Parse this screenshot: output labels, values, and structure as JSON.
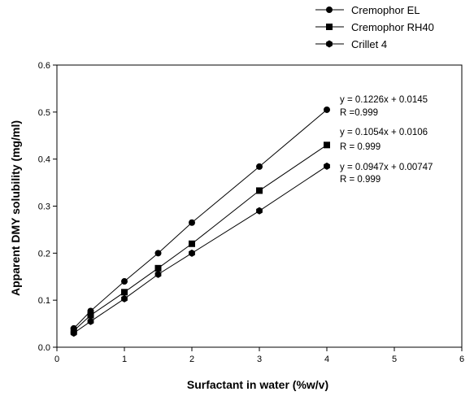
{
  "chart_data": {
    "type": "line",
    "xlabel": "Surfactant in water (%w/v)",
    "ylabel": "Apparent DMY solubility (mg/ml)",
    "xlim": [
      0,
      6
    ],
    "ylim": [
      0,
      0.6
    ],
    "xticks": [
      0,
      1,
      2,
      3,
      4,
      5,
      6
    ],
    "yticks": [
      0.0,
      0.1,
      0.2,
      0.3,
      0.4,
      0.5,
      0.6
    ],
    "xtick_labels": [
      "0",
      "1",
      "2",
      "3",
      "4",
      "5",
      "6"
    ],
    "ytick_labels": [
      "0.0",
      "0.1",
      "0.2",
      "0.3",
      "0.4",
      "0.5",
      "0.6"
    ],
    "grid": false,
    "legend_position": "top-right, outside plot",
    "series": [
      {
        "name": "Cremophor EL",
        "marker": "circle",
        "x": [
          0.25,
          0.5,
          1,
          1.5,
          2,
          3,
          4
        ],
        "y": [
          0.04,
          0.077,
          0.14,
          0.2,
          0.265,
          0.384,
          0.505
        ]
      },
      {
        "name": "Cremophor RH40",
        "marker": "square",
        "x": [
          0.25,
          0.5,
          1,
          1.5,
          2,
          3,
          4
        ],
        "y": [
          0.035,
          0.068,
          0.117,
          0.168,
          0.22,
          0.333,
          0.43
        ]
      },
      {
        "name": "Crillet 4",
        "marker": "hexagon",
        "x": [
          0.25,
          0.5,
          1,
          1.5,
          2,
          3,
          4
        ],
        "y": [
          0.03,
          0.055,
          0.103,
          0.155,
          0.2,
          0.29,
          0.385
        ]
      }
    ],
    "annotations": [
      {
        "line1": "y = 0.1226x +  0.0145",
        "line2": "R =0.999"
      },
      {
        "line1": "y = 0.1054x + 0.0106",
        "line2": "R = 0.999"
      },
      {
        "line1": "y = 0.0947x + 0.00747",
        "line2": "R = 0.999"
      }
    ]
  }
}
